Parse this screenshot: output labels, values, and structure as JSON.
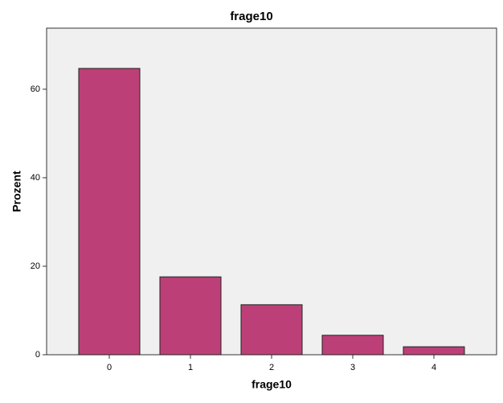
{
  "chart_data": {
    "type": "bar",
    "title": "frage10",
    "x_label": "frage10",
    "y_label": "Prozent",
    "categories": [
      "0",
      "1",
      "2",
      "3",
      "4"
    ],
    "values": [
      64.7,
      17.6,
      11.3,
      4.4,
      1.8
    ],
    "color": "#bc4077",
    "ylim": [
      0,
      73.8
    ],
    "yticks": [
      0,
      20,
      40,
      60
    ],
    "grid": false
  }
}
